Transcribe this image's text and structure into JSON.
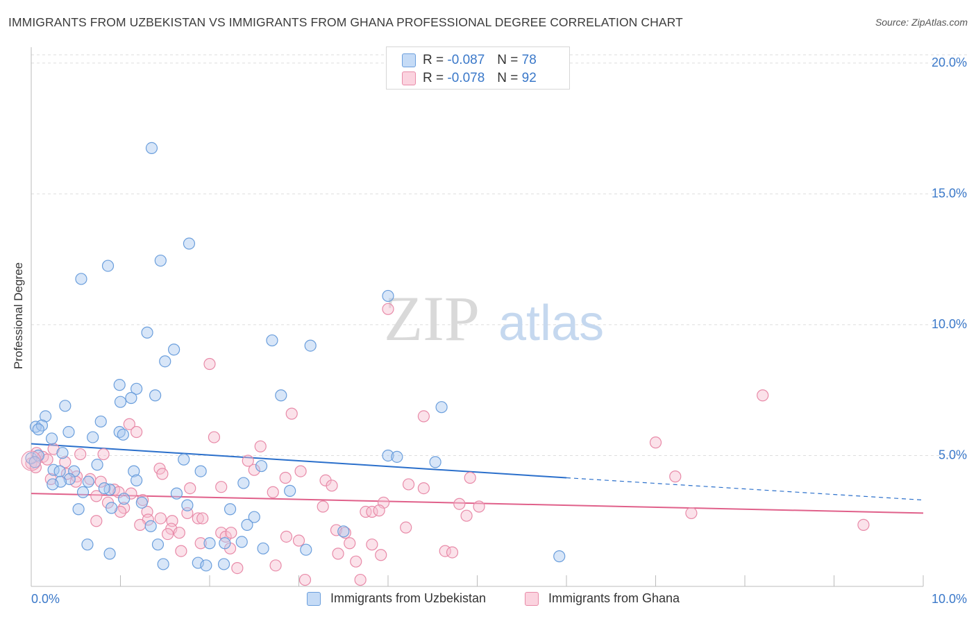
{
  "title": "IMMIGRANTS FROM UZBEKISTAN VS IMMIGRANTS FROM GHANA PROFESSIONAL DEGREE CORRELATION CHART",
  "source": "Source: ZipAtlas.com",
  "watermark": {
    "zip": "ZIP",
    "atlas": "atlas"
  },
  "legend_stats": [
    {
      "r_label": "R =",
      "r_value": "-0.087",
      "n_label": "N =",
      "n_value": "78"
    },
    {
      "r_label": "R =",
      "r_value": "-0.078",
      "n_label": "N =",
      "n_value": "92"
    }
  ],
  "colors": {
    "uzbekistan_fill": "#a9c8f0",
    "uzbekistan_stroke": "#6a9edc",
    "uzbekistan_line": "#2a6fcb",
    "ghana_fill": "#f7bfd0",
    "ghana_stroke": "#e88aa8",
    "ghana_line": "#e0608a",
    "tick_label": "#3a78c9",
    "grid": "#dddddd"
  },
  "chart_data": {
    "type": "scatter",
    "title": "IMMIGRANTS FROM UZBEKISTAN VS IMMIGRANTS FROM GHANA PROFESSIONAL DEGREE CORRELATION CHART",
    "xlabel": "",
    "ylabel": "Professional Degree",
    "xlim": [
      0,
      10
    ],
    "ylim": [
      0,
      20.5
    ],
    "x_tick_labels": [
      "0.0%",
      "10.0%"
    ],
    "y_ticks": [
      5,
      10,
      15,
      20
    ],
    "y_tick_labels": [
      "5.0%",
      "10.0%",
      "15.0%",
      "20.0%"
    ],
    "grid": true,
    "legend_position": "top-center",
    "series": [
      {
        "name": "Immigrants from Uzbekistan",
        "r": -0.087,
        "n": 78,
        "trend": {
          "x0": 0.0,
          "y0": 5.45,
          "x1": 6.0,
          "y1": 4.15,
          "dash_to_x": 10.0,
          "dash_to_y": 3.3
        },
        "points": [
          [
            1.35,
            16.75
          ],
          [
            1.77,
            13.1
          ],
          [
            0.86,
            12.25
          ],
          [
            1.45,
            12.45
          ],
          [
            0.56,
            11.75
          ],
          [
            4.0,
            11.1
          ],
          [
            1.3,
            9.7
          ],
          [
            1.6,
            9.05
          ],
          [
            2.7,
            9.4
          ],
          [
            3.13,
            9.2
          ],
          [
            1.5,
            8.6
          ],
          [
            0.99,
            7.7
          ],
          [
            1.18,
            7.55
          ],
          [
            1.0,
            7.05
          ],
          [
            1.12,
            7.2
          ],
          [
            1.39,
            7.3
          ],
          [
            2.8,
            7.3
          ],
          [
            0.38,
            6.9
          ],
          [
            0.16,
            6.5
          ],
          [
            4.6,
            6.85
          ],
          [
            0.05,
            6.1
          ],
          [
            0.12,
            6.15
          ],
          [
            0.08,
            6.0
          ],
          [
            0.78,
            6.3
          ],
          [
            0.42,
            5.9
          ],
          [
            0.99,
            5.9
          ],
          [
            1.03,
            5.8
          ],
          [
            0.23,
            5.65
          ],
          [
            0.69,
            5.7
          ],
          [
            0.35,
            5.1
          ],
          [
            0.0,
            4.9
          ],
          [
            0.08,
            5.0
          ],
          [
            0.04,
            4.75
          ],
          [
            4.0,
            5.0
          ],
          [
            4.1,
            4.95
          ],
          [
            1.71,
            4.85
          ],
          [
            0.74,
            4.65
          ],
          [
            4.53,
            4.75
          ],
          [
            2.58,
            4.6
          ],
          [
            0.25,
            4.45
          ],
          [
            0.32,
            4.4
          ],
          [
            1.15,
            4.4
          ],
          [
            0.48,
            4.4
          ],
          [
            1.9,
            4.4
          ],
          [
            0.43,
            4.1
          ],
          [
            0.64,
            4.0
          ],
          [
            0.33,
            4.0
          ],
          [
            1.18,
            4.05
          ],
          [
            0.24,
            3.9
          ],
          [
            0.88,
            3.7
          ],
          [
            0.82,
            3.75
          ],
          [
            0.58,
            3.6
          ],
          [
            2.9,
            3.65
          ],
          [
            2.38,
            3.95
          ],
          [
            1.04,
            3.35
          ],
          [
            1.24,
            3.2
          ],
          [
            1.63,
            3.55
          ],
          [
            1.75,
            3.1
          ],
          [
            0.53,
            2.95
          ],
          [
            0.9,
            3.0
          ],
          [
            2.23,
            2.95
          ],
          [
            2.5,
            2.65
          ],
          [
            1.34,
            2.3
          ],
          [
            2.42,
            2.35
          ],
          [
            3.5,
            2.1
          ],
          [
            0.63,
            1.6
          ],
          [
            1.42,
            1.6
          ],
          [
            2.0,
            1.65
          ],
          [
            2.17,
            1.65
          ],
          [
            0.88,
            1.25
          ],
          [
            2.6,
            1.45
          ],
          [
            3.08,
            1.4
          ],
          [
            1.48,
            0.85
          ],
          [
            1.87,
            0.9
          ],
          [
            1.96,
            0.8
          ],
          [
            2.16,
            0.85
          ],
          [
            5.92,
            1.15
          ],
          [
            2.36,
            1.7
          ]
        ]
      },
      {
        "name": "Immigrants from Ghana",
        "r": -0.078,
        "n": 92,
        "trend": {
          "x0": 0.0,
          "y0": 3.55,
          "x1": 10.0,
          "y1": 2.8
        },
        "points": [
          [
            4.0,
            10.6
          ],
          [
            2.0,
            8.5
          ],
          [
            8.2,
            7.3
          ],
          [
            2.92,
            6.6
          ],
          [
            4.4,
            6.5
          ],
          [
            1.1,
            6.2
          ],
          [
            1.18,
            5.9
          ],
          [
            2.05,
            5.7
          ],
          [
            7.0,
            5.5
          ],
          [
            2.57,
            5.35
          ],
          [
            0.0,
            4.7
          ],
          [
            0.06,
            5.1
          ],
          [
            0.13,
            4.95
          ],
          [
            0.18,
            4.85
          ],
          [
            0.05,
            4.55
          ],
          [
            0.55,
            5.05
          ],
          [
            0.81,
            5.05
          ],
          [
            0.38,
            4.75
          ],
          [
            0.25,
            5.25
          ],
          [
            2.43,
            4.8
          ],
          [
            1.44,
            4.5
          ],
          [
            1.47,
            4.3
          ],
          [
            2.5,
            4.45
          ],
          [
            3.02,
            4.4
          ],
          [
            0.4,
            4.3
          ],
          [
            0.51,
            4.2
          ],
          [
            0.5,
            4.0
          ],
          [
            0.66,
            4.1
          ],
          [
            0.78,
            4.0
          ],
          [
            0.22,
            4.1
          ],
          [
            0.73,
            3.45
          ],
          [
            0.93,
            3.7
          ],
          [
            0.98,
            3.6
          ],
          [
            1.12,
            3.55
          ],
          [
            1.25,
            3.3
          ],
          [
            2.85,
            4.15
          ],
          [
            3.3,
            4.05
          ],
          [
            3.37,
            3.85
          ],
          [
            4.23,
            3.9
          ],
          [
            4.4,
            3.75
          ],
          [
            4.92,
            4.15
          ],
          [
            7.22,
            4.2
          ],
          [
            2.13,
            3.8
          ],
          [
            1.78,
            3.75
          ],
          [
            2.71,
            3.6
          ],
          [
            3.95,
            3.2
          ],
          [
            3.27,
            3.05
          ],
          [
            4.8,
            3.15
          ],
          [
            5.02,
            3.05
          ],
          [
            0.86,
            3.2
          ],
          [
            1.04,
            3.0
          ],
          [
            1.0,
            2.85
          ],
          [
            1.3,
            2.85
          ],
          [
            1.31,
            2.55
          ],
          [
            1.45,
            2.6
          ],
          [
            1.75,
            2.8
          ],
          [
            1.87,
            2.6
          ],
          [
            1.92,
            2.6
          ],
          [
            3.75,
            2.85
          ],
          [
            3.82,
            2.85
          ],
          [
            3.9,
            2.9
          ],
          [
            4.88,
            2.7
          ],
          [
            7.4,
            2.8
          ],
          [
            0.73,
            2.5
          ],
          [
            1.22,
            2.35
          ],
          [
            1.58,
            2.5
          ],
          [
            1.57,
            2.2
          ],
          [
            1.53,
            2.0
          ],
          [
            1.66,
            2.05
          ],
          [
            2.13,
            2.05
          ],
          [
            2.18,
            1.9
          ],
          [
            2.24,
            2.05
          ],
          [
            2.86,
            1.9
          ],
          [
            3.42,
            2.15
          ],
          [
            3.52,
            2.05
          ],
          [
            4.2,
            2.25
          ],
          [
            9.33,
            2.35
          ],
          [
            3.0,
            1.75
          ],
          [
            3.57,
            1.65
          ],
          [
            3.82,
            1.6
          ],
          [
            1.9,
            1.65
          ],
          [
            1.68,
            1.35
          ],
          [
            2.23,
            1.45
          ],
          [
            3.44,
            1.25
          ],
          [
            3.64,
            0.95
          ],
          [
            3.92,
            1.2
          ],
          [
            4.64,
            1.35
          ],
          [
            4.72,
            1.3
          ],
          [
            2.31,
            0.7
          ],
          [
            2.74,
            0.8
          ],
          [
            3.07,
            0.25
          ],
          [
            3.69,
            0.25
          ]
        ]
      }
    ]
  },
  "axis_labels": {
    "x_min": "0.0%",
    "x_max": "10.0%",
    "y_title": "Professional Degree"
  }
}
